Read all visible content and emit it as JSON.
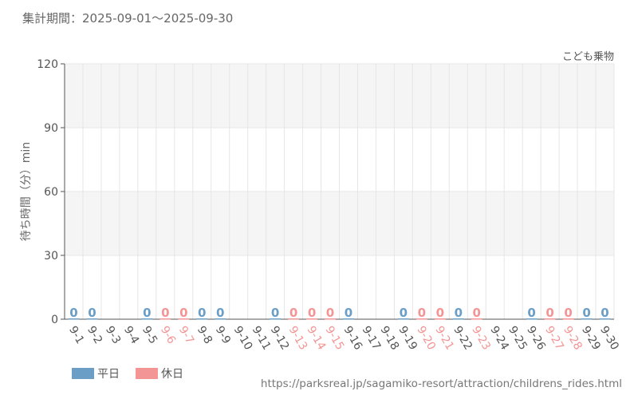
{
  "header": {
    "period_label": "集計期間：2025-09-01〜2025-09-30",
    "attraction_name": "こども乗物"
  },
  "legend": {
    "weekday": {
      "label": "平日",
      "color": "#6a9ec6"
    },
    "holiday": {
      "label": "休日",
      "color": "#f49595"
    }
  },
  "footer": {
    "source_url": "https://parksreal.jp/sagamiko-resort/attraction/childrens_rides.html"
  },
  "chart_data": {
    "type": "bar",
    "title": "",
    "xlabel": "",
    "ylabel": "待ち時間（分）min",
    "ylim": [
      0,
      120
    ],
    "yticks": [
      0,
      30,
      60,
      90,
      120
    ],
    "grid": true,
    "legend_position": "bottom-left",
    "categories": [
      "9-1",
      "9-2",
      "9-3",
      "9-4",
      "9-5",
      "9-6",
      "9-7",
      "9-8",
      "9-9",
      "9-10",
      "9-11",
      "9-12",
      "9-13",
      "9-14",
      "9-15",
      "9-16",
      "9-17",
      "9-18",
      "9-19",
      "9-20",
      "9-21",
      "9-22",
      "9-23",
      "9-24",
      "9-25",
      "9-26",
      "9-27",
      "9-28",
      "9-29",
      "9-30"
    ],
    "day_type": [
      "weekday",
      "weekday",
      "weekday",
      "weekday",
      "weekday",
      "holiday",
      "holiday",
      "weekday",
      "weekday",
      "weekday",
      "weekday",
      "weekday",
      "holiday",
      "holiday",
      "holiday",
      "weekday",
      "weekday",
      "weekday",
      "weekday",
      "holiday",
      "holiday",
      "weekday",
      "holiday",
      "weekday",
      "weekday",
      "weekday",
      "holiday",
      "holiday",
      "weekday",
      "weekday"
    ],
    "values": [
      0,
      0,
      null,
      null,
      0,
      0,
      0,
      0,
      0,
      null,
      null,
      0,
      0,
      0,
      0,
      0,
      null,
      null,
      0,
      0,
      0,
      0,
      0,
      null,
      null,
      0,
      0,
      0,
      0,
      0
    ],
    "data_labels": [
      "0",
      "0",
      "",
      "",
      "0",
      "0",
      "0",
      "0",
      "0",
      "",
      "",
      "0",
      "0",
      "0",
      "0",
      "0",
      "",
      "",
      "0",
      "0",
      "0",
      "0",
      "0",
      "",
      "",
      "0",
      "0",
      "0",
      "0",
      "0"
    ],
    "colors": {
      "weekday": "#6a9ec6",
      "holiday": "#f49595",
      "grid": "#e6e6e6",
      "band": "#f5f5f5",
      "axis": "#555555"
    }
  }
}
